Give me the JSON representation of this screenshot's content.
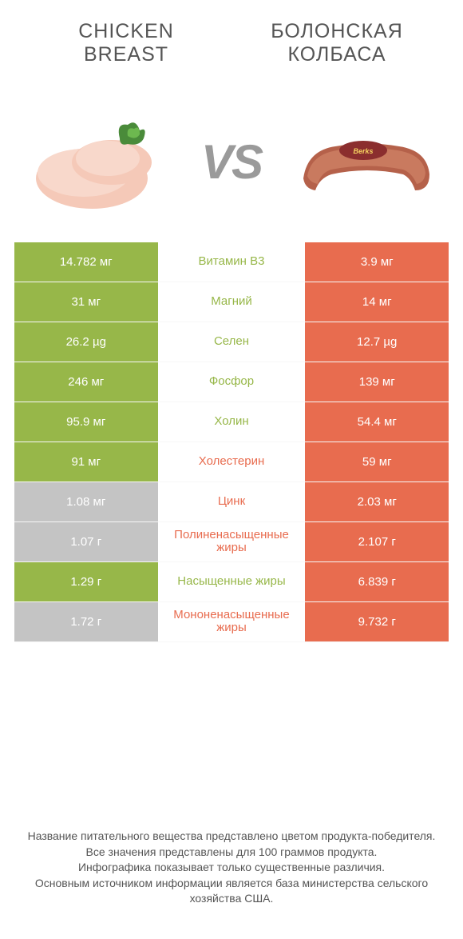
{
  "colors": {
    "green": "#97b749",
    "orange": "#e86c4f",
    "gray_cell": "#c4c4c4",
    "green_text": "#97b749",
    "orange_text": "#e86c4f"
  },
  "header": {
    "left": "CHICKEN BREAST",
    "right": "БОЛОНСКАЯ КОЛБАСА",
    "vs": "VS"
  },
  "rows": [
    {
      "left_val": "14.782 мг",
      "label": "Витамин B3",
      "right_val": "3.9 мг",
      "winner": "left"
    },
    {
      "left_val": "31 мг",
      "label": "Магний",
      "right_val": "14 мг",
      "winner": "left"
    },
    {
      "left_val": "26.2 µg",
      "label": "Селен",
      "right_val": "12.7 µg",
      "winner": "left"
    },
    {
      "left_val": "246 мг",
      "label": "Фосфор",
      "right_val": "139 мг",
      "winner": "left"
    },
    {
      "left_val": "95.9 мг",
      "label": "Холин",
      "right_val": "54.4 мг",
      "winner": "left"
    },
    {
      "left_val": "91 мг",
      "label": "Холестерин",
      "right_val": "59 мг",
      "winner": "right",
      "loser_is_left_but_higher": true
    },
    {
      "left_val": "1.08 мг",
      "label": "Цинк",
      "right_val": "2.03 мг",
      "winner": "right"
    },
    {
      "left_val": "1.07 г",
      "label": "Полиненасыщенные жиры",
      "right_val": "2.107 г",
      "winner": "right"
    },
    {
      "left_val": "1.29 г",
      "label": "Насыщенные жиры",
      "right_val": "6.839 г",
      "winner": "left",
      "green_wins": true
    },
    {
      "left_val": "1.72 г",
      "label": "Мононенасыщенные жиры",
      "right_val": "9.732 г",
      "winner": "right"
    }
  ],
  "row_styles": [
    {
      "left_bg": "#97b749",
      "right_bg": "#e86c4f",
      "label_color": "#97b749"
    },
    {
      "left_bg": "#97b749",
      "right_bg": "#e86c4f",
      "label_color": "#97b749"
    },
    {
      "left_bg": "#97b749",
      "right_bg": "#e86c4f",
      "label_color": "#97b749"
    },
    {
      "left_bg": "#97b749",
      "right_bg": "#e86c4f",
      "label_color": "#97b749"
    },
    {
      "left_bg": "#97b749",
      "right_bg": "#e86c4f",
      "label_color": "#97b749"
    },
    {
      "left_bg": "#97b749",
      "right_bg": "#e86c4f",
      "label_color": "#e86c4f"
    },
    {
      "left_bg": "#c4c4c4",
      "right_bg": "#e86c4f",
      "label_color": "#e86c4f"
    },
    {
      "left_bg": "#c4c4c4",
      "right_bg": "#e86c4f",
      "label_color": "#e86c4f"
    },
    {
      "left_bg": "#97b749",
      "right_bg": "#e86c4f",
      "label_color": "#97b749"
    },
    {
      "left_bg": "#c4c4c4",
      "right_bg": "#e86c4f",
      "label_color": "#e86c4f"
    }
  ],
  "footer": {
    "line1": "Название питательного вещества представлено цветом продукта-победителя.",
    "line2": "Все значения представлены для 100 граммов продукта.",
    "line3": "Инфографика показывает только существенные различия.",
    "line4": "Основным источником информации является база министерства сельского хозяйства США."
  }
}
